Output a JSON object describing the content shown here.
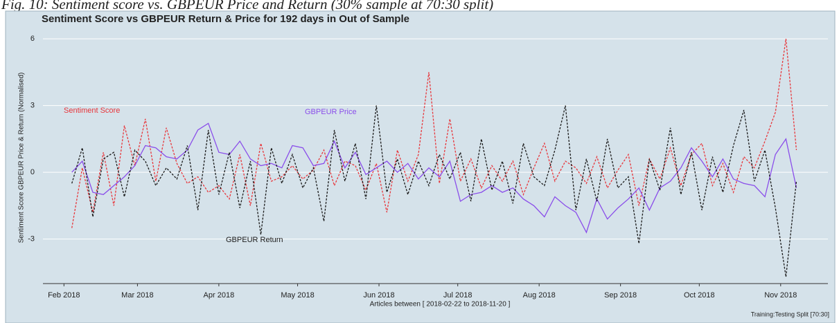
{
  "chart_data": {
    "type": "line",
    "caption": "Fig. 10: Sentiment score vs. GBPEUR Price and Return (30% sample at 70:30 split)",
    "title": "Sentiment Score vs  GBPEUR Return & Price for 192 days in Out of Sample",
    "xlabel": "Articles between [ 2018-02-22  to 2018-11-20 ]",
    "ylabel": "Sentiment Score GBPEUR Price & Return (Normalised)",
    "footnote": "Training:Testing Split [70:30]",
    "x": [
      "2018-02-04",
      "2018-02-08",
      "2018-02-12",
      "2018-02-16",
      "2018-02-20",
      "2018-02-24",
      "2018-02-28",
      "2018-03-04",
      "2018-03-08",
      "2018-03-12",
      "2018-03-16",
      "2018-03-20",
      "2018-03-24",
      "2018-03-28",
      "2018-04-01",
      "2018-04-05",
      "2018-04-09",
      "2018-04-13",
      "2018-04-17",
      "2018-04-21",
      "2018-04-25",
      "2018-04-29",
      "2018-05-03",
      "2018-05-07",
      "2018-05-11",
      "2018-05-15",
      "2018-05-19",
      "2018-05-23",
      "2018-05-27",
      "2018-05-31",
      "2018-06-04",
      "2018-06-08",
      "2018-06-12",
      "2018-06-16",
      "2018-06-20",
      "2018-06-24",
      "2018-06-28",
      "2018-07-02",
      "2018-07-06",
      "2018-07-10",
      "2018-07-14",
      "2018-07-18",
      "2018-07-22",
      "2018-07-26",
      "2018-07-30",
      "2018-08-03",
      "2018-08-07",
      "2018-08-11",
      "2018-08-15",
      "2018-08-19",
      "2018-08-23",
      "2018-08-27",
      "2018-08-31",
      "2018-09-04",
      "2018-09-08",
      "2018-09-12",
      "2018-09-16",
      "2018-09-20",
      "2018-09-24",
      "2018-09-28",
      "2018-10-02",
      "2018-10-06",
      "2018-10-10",
      "2018-10-14",
      "2018-10-18",
      "2018-10-22",
      "2018-10-26",
      "2018-10-30",
      "2018-11-03",
      "2018-11-07"
    ],
    "series": [
      {
        "name": "Sentiment Score",
        "color": "#e8353a",
        "linestyle": "dotted",
        "values": [
          -2.5,
          0.2,
          -1.8,
          0.9,
          -1.5,
          2.1,
          0.3,
          2.4,
          -0.4,
          2.0,
          0.4,
          -0.5,
          -0.2,
          -0.9,
          -0.6,
          -1.2,
          0.8,
          -1.5,
          1.3,
          -0.4,
          -0.2,
          0.3,
          -0.3,
          0.1,
          1.0,
          -0.6,
          0.5,
          0.3,
          -0.8,
          0.4,
          -1.8,
          1.0,
          -0.4,
          0.8,
          4.5,
          -0.5,
          2.4,
          -0.4,
          0.6,
          -0.7,
          0.3,
          -0.4,
          0.5,
          -1.0,
          0.2,
          1.3,
          -0.4,
          0.5,
          0.2,
          -0.5,
          0.7,
          -0.7,
          0.1,
          0.8,
          -1.5,
          0.6,
          -0.3,
          1.1,
          -0.6,
          0.8,
          1.3,
          -0.6,
          0.4,
          -0.9,
          0.7,
          0.2,
          1.4,
          2.7,
          6.0,
          1.0
        ]
      },
      {
        "name": "GBPEUR Price",
        "color": "#8a4dea",
        "linestyle": "solid",
        "values": [
          0.0,
          0.5,
          -0.9,
          -1.0,
          -0.6,
          -0.2,
          0.3,
          1.2,
          1.1,
          0.7,
          0.6,
          1.0,
          1.9,
          2.2,
          0.9,
          0.8,
          1.4,
          0.6,
          0.3,
          0.4,
          0.2,
          1.2,
          1.1,
          0.3,
          0.4,
          1.4,
          0.2,
          0.9,
          -0.1,
          0.2,
          0.5,
          0.0,
          0.4,
          -0.3,
          0.2,
          -0.2,
          0.5,
          -1.3,
          -1.0,
          -0.9,
          -0.6,
          -0.9,
          -0.7,
          -1.2,
          -1.5,
          -2.0,
          -1.1,
          -1.5,
          -1.8,
          -2.7,
          -1.2,
          -2.1,
          -1.6,
          -1.2,
          -0.7,
          -1.7,
          -0.7,
          -0.4,
          0.2,
          1.1,
          0.5,
          -0.2,
          0.6,
          -0.3,
          -0.5,
          -0.6,
          -1.1,
          0.8,
          1.5,
          -0.7
        ]
      },
      {
        "name": "GBPEUR Return",
        "color": "#1a1a1a",
        "linestyle": "dotted",
        "values": [
          -0.5,
          1.1,
          -2.0,
          0.6,
          0.9,
          -1.1,
          1.0,
          0.5,
          -0.6,
          0.2,
          -0.3,
          1.2,
          -1.7,
          1.9,
          -1.0,
          0.9,
          -1.6,
          0.5,
          -2.8,
          1.1,
          -0.5,
          0.8,
          -0.7,
          0.2,
          -2.2,
          1.9,
          -0.4,
          1.3,
          -1.2,
          3.0,
          -0.9,
          0.6,
          -1.0,
          0.5,
          -0.6,
          0.8,
          -0.3,
          0.9,
          -1.3,
          1.5,
          -0.8,
          0.5,
          -1.4,
          1.3,
          -0.2,
          -0.6,
          1.0,
          3.0,
          -1.7,
          0.6,
          -1.3,
          1.5,
          -0.7,
          -0.2,
          -3.2,
          0.6,
          -0.8,
          2.0,
          -1.0,
          0.9,
          -1.7,
          0.7,
          -0.9,
          1.2,
          2.8,
          -0.4,
          1.0,
          -1.6,
          -4.7,
          -0.4
        ]
      }
    ],
    "xlim": [
      "2018-01-24",
      "2018-11-19"
    ],
    "xticks": [
      {
        "value": "2018-02-01",
        "label": "Feb 2018"
      },
      {
        "value": "2018-03-01",
        "label": "Mar 2018"
      },
      {
        "value": "2018-04-01",
        "label": "Apr 2018"
      },
      {
        "value": "2018-05-01",
        "label": "May 2018"
      },
      {
        "value": "2018-06-01",
        "label": "Jun 2018"
      },
      {
        "value": "2018-07-01",
        "label": "Jul 2018"
      },
      {
        "value": "2018-08-01",
        "label": "Aug 2018"
      },
      {
        "value": "2018-09-01",
        "label": "Sep 2018"
      },
      {
        "value": "2018-10-01",
        "label": "Oct 2018"
      },
      {
        "value": "2018-11-01",
        "label": "Nov 2018"
      }
    ],
    "ylim": [
      -5,
      6.5
    ],
    "yticks": [
      -3,
      0,
      3,
      6
    ],
    "grid": true
  }
}
